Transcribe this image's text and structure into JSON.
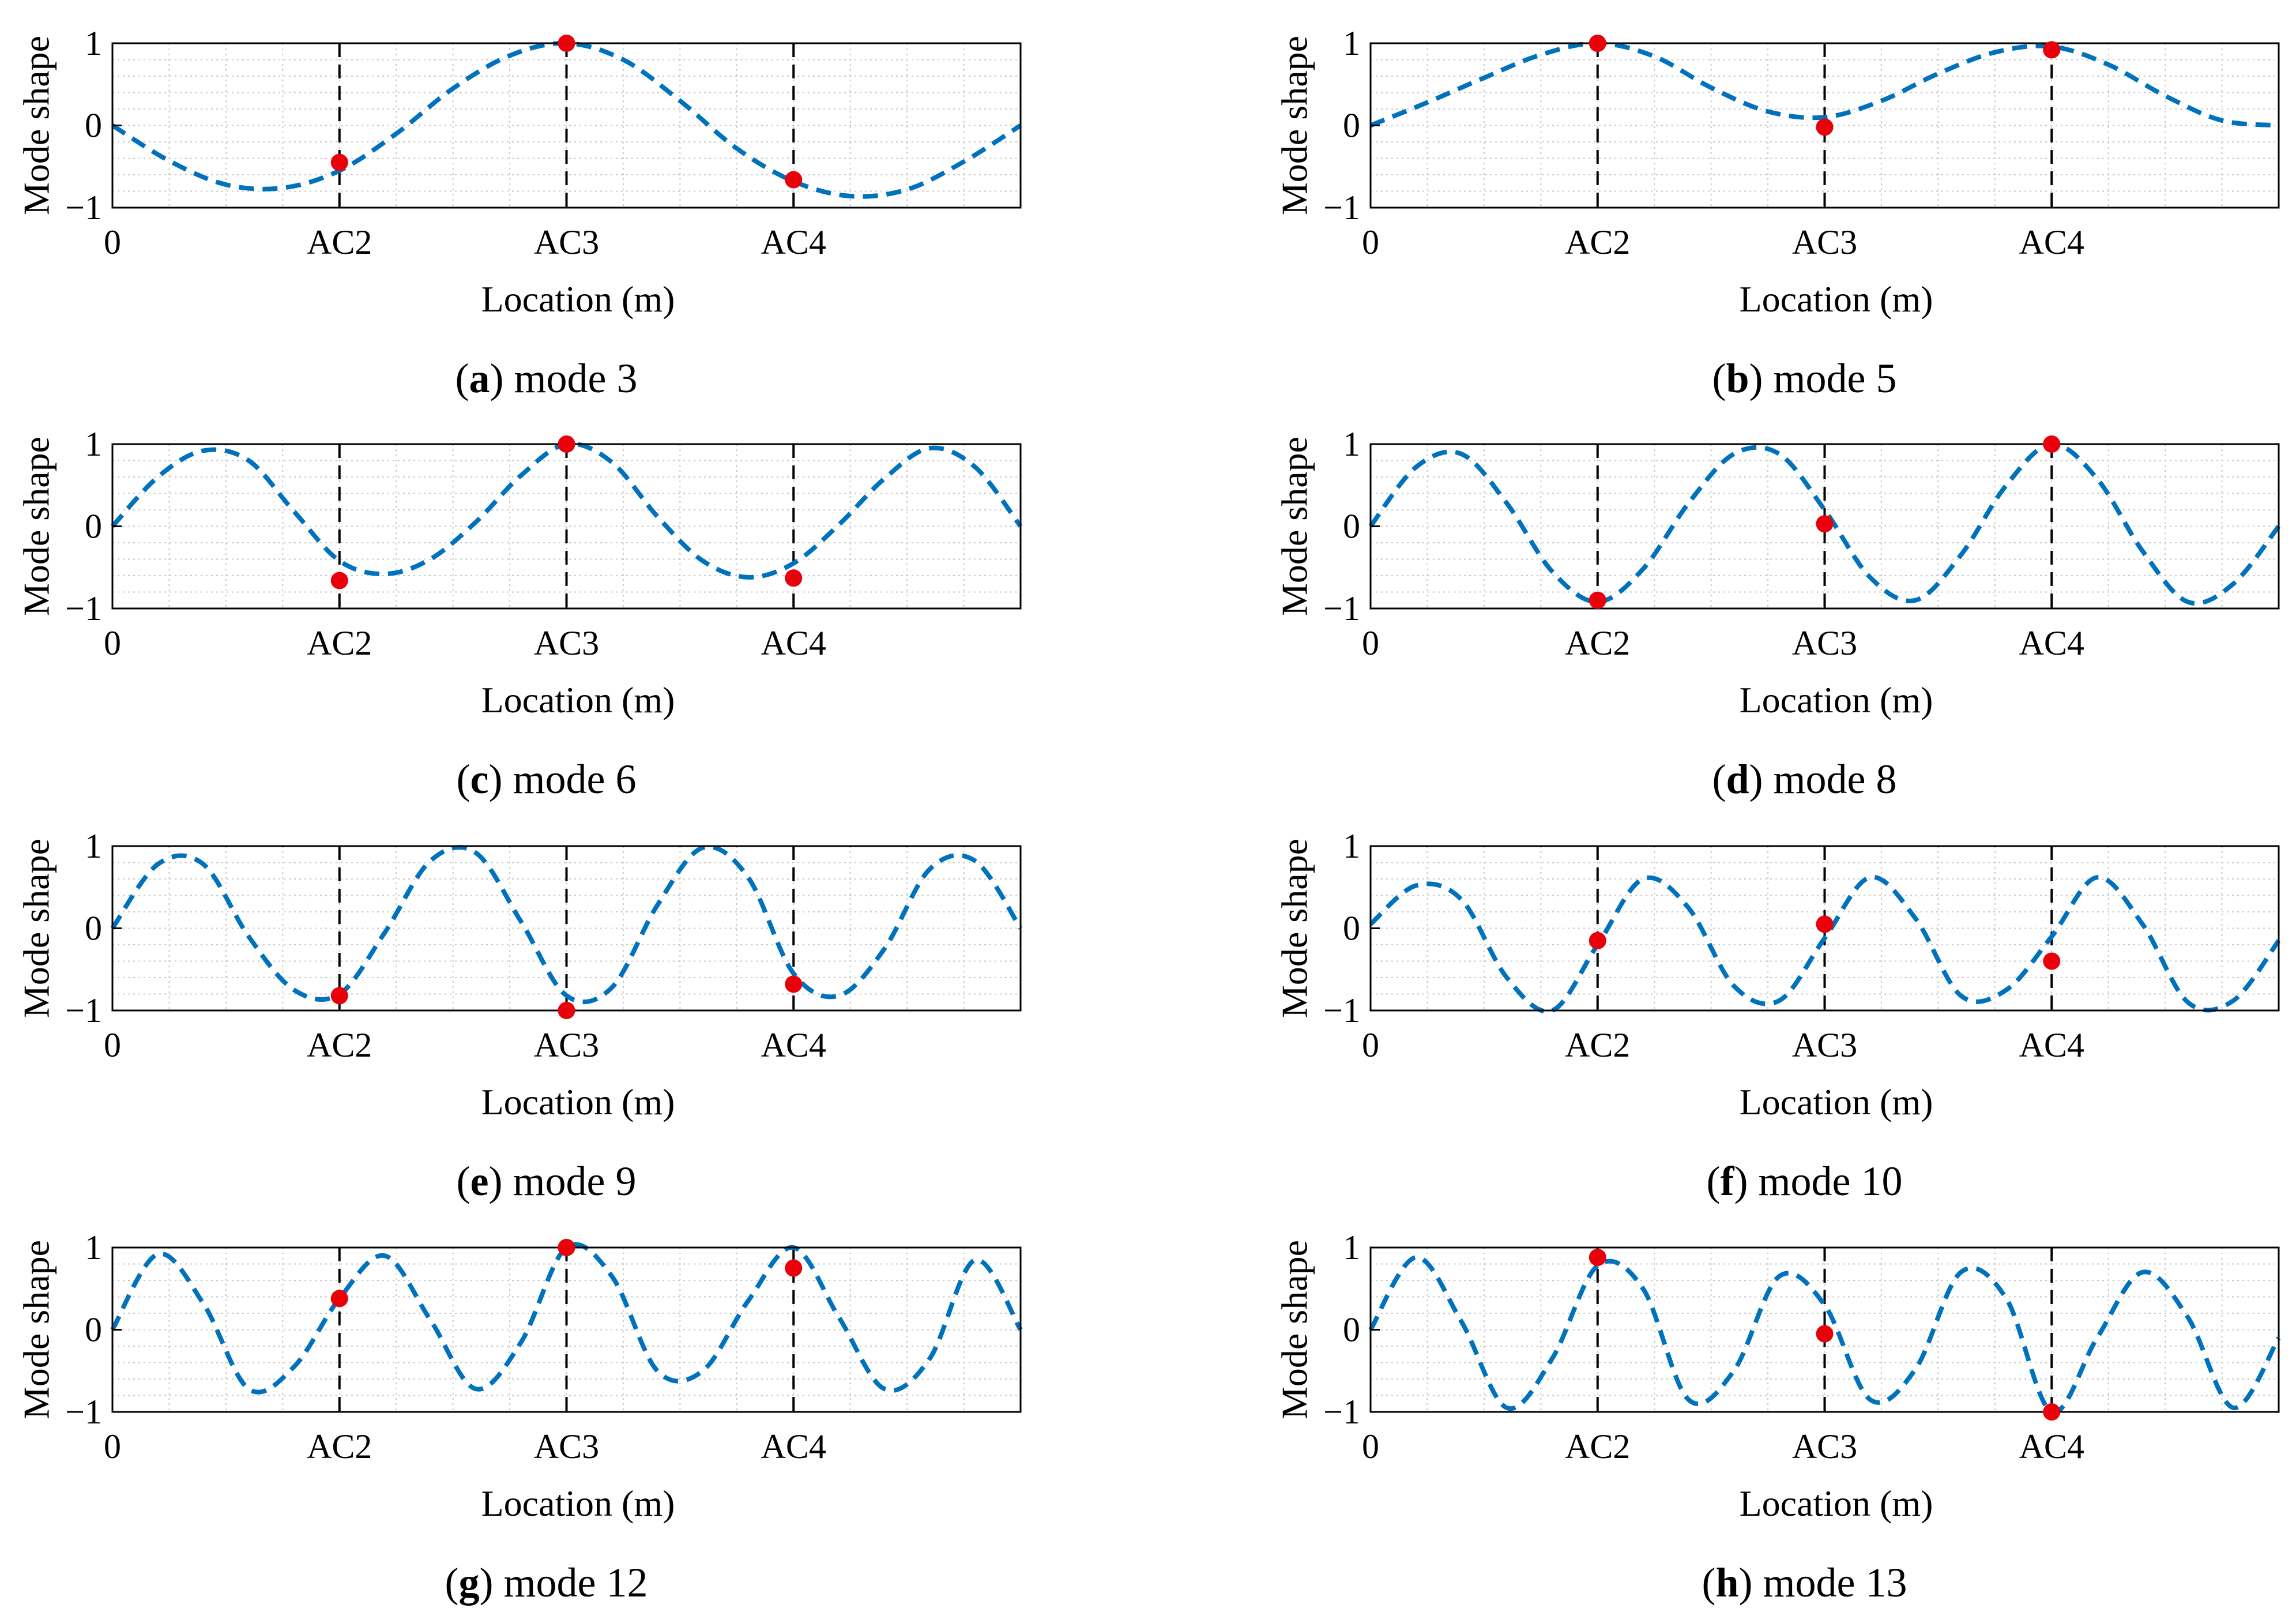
{
  "figure": {
    "colors": {
      "curve": "#0072BD",
      "marker": "#E8000B",
      "axis": "#000000",
      "grid": "#C8C8C8",
      "sensor_line": "#000000"
    }
  },
  "chart_data": [
    {
      "type": "line",
      "panel_letter": "a",
      "caption": "mode 3",
      "ylabel": "Mode shape",
      "xlabel": "Location (m)",
      "xtick_labels": [
        "0",
        "AC2",
        "AC3",
        "AC4"
      ],
      "ytick_labels": [
        "1",
        "0",
        "−1"
      ],
      "xlim": [
        0,
        4
      ],
      "ylim": [
        -1,
        1
      ],
      "curve": {
        "line_style": "dashed",
        "x": [
          0,
          0.25,
          0.5,
          0.75,
          1,
          1.25,
          1.5,
          1.75,
          2,
          2.25,
          2.5,
          2.75,
          3,
          3.25,
          3.5,
          3.75,
          4
        ],
        "y": [
          0,
          -0.43,
          -0.72,
          -0.76,
          -0.55,
          -0.1,
          0.45,
          0.85,
          1,
          0.8,
          0.3,
          -0.28,
          -0.68,
          -0.86,
          -0.78,
          -0.44,
          0
        ]
      },
      "sensor_lines_x": [
        1,
        2,
        3
      ],
      "markers": {
        "x": [
          1,
          2,
          3
        ],
        "y": [
          -0.45,
          1,
          -0.66
        ]
      }
    },
    {
      "type": "line",
      "panel_letter": "b",
      "caption": "mode 5",
      "ylabel": "Mode shape",
      "xlabel": "Location (m)",
      "xtick_labels": [
        "0",
        "AC2",
        "AC3",
        "AC4"
      ],
      "ytick_labels": [
        "1",
        "0",
        "−1"
      ],
      "xlim": [
        0,
        4
      ],
      "ylim": [
        -1,
        1
      ],
      "curve": {
        "line_style": "dashed",
        "x": [
          0,
          0.25,
          0.5,
          0.75,
          1,
          1.25,
          1.5,
          1.75,
          2,
          2.25,
          2.5,
          2.75,
          3,
          3.25,
          3.5,
          3.75,
          4
        ],
        "y": [
          0,
          0.28,
          0.58,
          0.86,
          1,
          0.84,
          0.46,
          0.17,
          0.1,
          0.3,
          0.63,
          0.89,
          0.96,
          0.74,
          0.36,
          0.06,
          0
        ]
      },
      "sensor_lines_x": [
        1,
        2,
        3
      ],
      "markers": {
        "x": [
          1,
          2,
          3
        ],
        "y": [
          1,
          -0.02,
          0.92
        ]
      }
    },
    {
      "type": "line",
      "panel_letter": "c",
      "caption": "mode 6",
      "ylabel": "Mode shape",
      "xlabel": "Location (m)",
      "xtick_labels": [
        "0",
        "AC2",
        "AC3",
        "AC4"
      ],
      "ytick_labels": [
        "1",
        "0",
        "−1"
      ],
      "xlim": [
        0,
        4
      ],
      "ylim": [
        -1,
        1
      ],
      "curve": {
        "line_style": "dashed",
        "x": [
          0,
          0.2,
          0.4,
          0.6,
          0.8,
          1,
          1.2,
          1.4,
          1.6,
          1.8,
          2,
          2.2,
          2.4,
          2.6,
          2.8,
          3,
          3.2,
          3.4,
          3.6,
          3.8,
          4
        ],
        "y": [
          0,
          0.6,
          0.92,
          0.8,
          0.18,
          -0.42,
          -0.58,
          -0.4,
          0.05,
          0.62,
          1,
          0.78,
          0.12,
          -0.42,
          -0.62,
          -0.45,
          0.02,
          0.58,
          0.95,
          0.72,
          0
        ]
      },
      "sensor_lines_x": [
        1,
        2,
        3
      ],
      "markers": {
        "x": [
          1,
          2,
          3
        ],
        "y": [
          -0.66,
          1,
          -0.63
        ]
      }
    },
    {
      "type": "line",
      "panel_letter": "d",
      "caption": "mode 8",
      "ylabel": "Mode shape",
      "xlabel": "Location (m)",
      "xtick_labels": [
        "0",
        "AC2",
        "AC3",
        "AC4"
      ],
      "ytick_labels": [
        "1",
        "0",
        "−1"
      ],
      "xlim": [
        0,
        4
      ],
      "ylim": [
        -1,
        1
      ],
      "curve": {
        "line_style": "dashed",
        "x": [
          0,
          0.2,
          0.4,
          0.6,
          0.8,
          1,
          1.2,
          1.4,
          1.6,
          1.8,
          2,
          2.2,
          2.4,
          2.6,
          2.8,
          3,
          3.2,
          3.4,
          3.6,
          3.8,
          4
        ],
        "y": [
          0,
          0.72,
          0.88,
          0.28,
          -0.55,
          -0.92,
          -0.52,
          0.28,
          0.88,
          0.88,
          0.2,
          -0.62,
          -0.9,
          -0.35,
          0.5,
          1,
          0.58,
          -0.3,
          -0.92,
          -0.7,
          0
        ]
      },
      "sensor_lines_x": [
        1,
        2,
        3
      ],
      "markers": {
        "x": [
          1,
          2,
          3
        ],
        "y": [
          -0.9,
          0.03,
          1
        ]
      }
    },
    {
      "type": "line",
      "panel_letter": "e",
      "caption": "mode 9",
      "ylabel": "Mode shape",
      "xlabel": "Location (m)",
      "xtick_labels": [
        "0",
        "AC2",
        "AC3",
        "AC4"
      ],
      "ytick_labels": [
        "1",
        "0",
        "−1"
      ],
      "xlim": [
        0,
        4
      ],
      "ylim": [
        -1,
        1
      ],
      "curve": {
        "line_style": "dashed",
        "x": [
          0,
          0.2,
          0.4,
          0.6,
          0.8,
          1,
          1.2,
          1.4,
          1.6,
          1.8,
          2,
          2.2,
          2.4,
          2.6,
          2.8,
          3,
          3.2,
          3.4,
          3.6,
          3.8,
          4
        ],
        "y": [
          0,
          0.78,
          0.78,
          -0.1,
          -0.75,
          -0.8,
          -0.05,
          0.82,
          0.92,
          0.08,
          -0.82,
          -0.72,
          0.28,
          0.98,
          0.62,
          -0.55,
          -0.82,
          -0.25,
          0.72,
          0.82,
          0
        ]
      },
      "sensor_lines_x": [
        1,
        2,
        3
      ],
      "markers": {
        "x": [
          1,
          2,
          3
        ],
        "y": [
          -0.82,
          -1,
          -0.68
        ]
      }
    },
    {
      "type": "line",
      "panel_letter": "f",
      "caption": "mode 10",
      "ylabel": "Mode shape",
      "xlabel": "Location (m)",
      "xtick_labels": [
        "0",
        "AC2",
        "AC3",
        "AC4"
      ],
      "ytick_labels": [
        "1",
        "0",
        "−1"
      ],
      "xlim": [
        0,
        4
      ],
      "ylim": [
        -1,
        1
      ],
      "curve": {
        "line_style": "dashed",
        "x": [
          0,
          0.2,
          0.4,
          0.6,
          0.8,
          1,
          1.2,
          1.4,
          1.6,
          1.8,
          2,
          2.2,
          2.4,
          2.6,
          2.8,
          3,
          3.2,
          3.4,
          3.6,
          3.8,
          4
        ],
        "y": [
          0.05,
          0.52,
          0.35,
          -0.6,
          -1,
          -0.2,
          0.6,
          0.25,
          -0.7,
          -0.88,
          -0.12,
          0.62,
          0.12,
          -0.82,
          -0.75,
          -0.1,
          0.62,
          0.05,
          -0.9,
          -0.88,
          -0.15
        ]
      },
      "sensor_lines_x": [
        1,
        2,
        3
      ],
      "markers": {
        "x": [
          1,
          2,
          3
        ],
        "y": [
          -0.15,
          0.05,
          -0.4
        ]
      }
    },
    {
      "type": "line",
      "panel_letter": "g",
      "caption": "mode 12",
      "ylabel": "Mode shape",
      "xlabel": "Location (m)",
      "xtick_labels": [
        "0",
        "AC2",
        "AC3",
        "AC4"
      ],
      "ytick_labels": [
        "1",
        "0",
        "−1"
      ],
      "xlim": [
        0,
        4
      ],
      "ylim": [
        -1,
        1
      ],
      "curve": {
        "line_style": "dashed",
        "x": [
          0,
          0.2,
          0.4,
          0.6,
          0.8,
          1,
          1.2,
          1.4,
          1.6,
          1.8,
          2,
          2.2,
          2.4,
          2.6,
          2.8,
          3,
          3.2,
          3.4,
          3.6,
          3.8,
          4
        ],
        "y": [
          0,
          0.92,
          0.32,
          -0.72,
          -0.45,
          0.38,
          0.9,
          0.12,
          -0.72,
          -0.15,
          1,
          0.65,
          -0.5,
          -0.5,
          0.35,
          1,
          0.15,
          -0.72,
          -0.35,
          0.85,
          0
        ]
      },
      "sensor_lines_x": [
        1,
        2,
        3
      ],
      "markers": {
        "x": [
          1,
          2,
          3
        ],
        "y": [
          0.38,
          1,
          0.75
        ]
      }
    },
    {
      "type": "line",
      "panel_letter": "h",
      "caption": "mode 13",
      "ylabel": "Mode shape",
      "xlabel": "Location (m)",
      "xtick_labels": [
        "0",
        "AC2",
        "AC3",
        "AC4"
      ],
      "ytick_labels": [
        "1",
        "0",
        "−1"
      ],
      "xlim": [
        0,
        4
      ],
      "ylim": [
        -1,
        1
      ],
      "curve": {
        "line_style": "dashed",
        "x": [
          0,
          0.2,
          0.4,
          0.6,
          0.8,
          1,
          1.2,
          1.4,
          1.6,
          1.8,
          2,
          2.2,
          2.4,
          2.6,
          2.8,
          3,
          3.2,
          3.4,
          3.6,
          3.8,
          4
        ],
        "y": [
          0,
          0.88,
          0.1,
          -0.95,
          -0.35,
          0.78,
          0.5,
          -0.85,
          -0.5,
          0.65,
          0.3,
          -0.85,
          -0.48,
          0.7,
          0.38,
          -1,
          -0.1,
          0.7,
          0.15,
          -0.95,
          -0.1
        ]
      },
      "sensor_lines_x": [
        1,
        2,
        3
      ],
      "markers": {
        "x": [
          1,
          2,
          3
        ],
        "y": [
          0.88,
          -0.05,
          -1
        ]
      }
    }
  ]
}
